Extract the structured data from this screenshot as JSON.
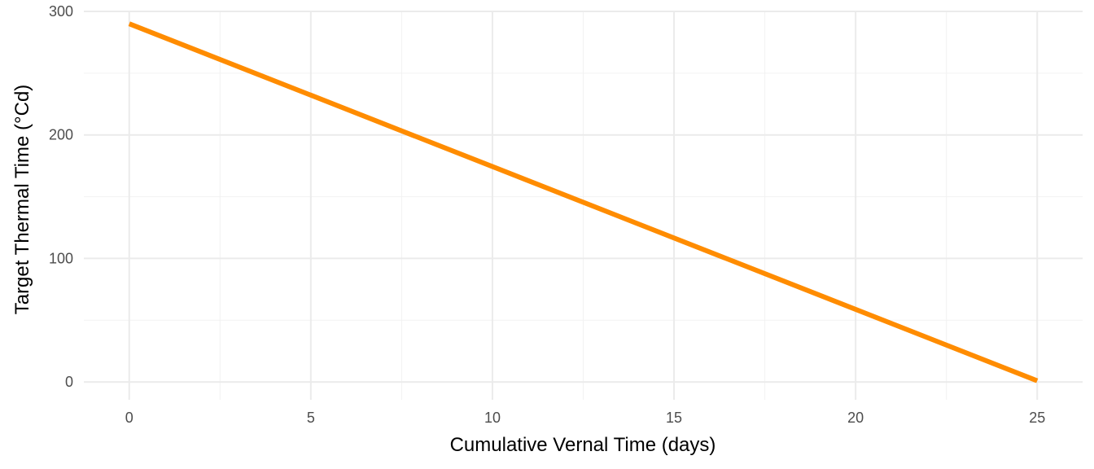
{
  "chart_data": {
    "type": "line",
    "title": "",
    "xlabel": "Cumulative Vernal Time (days)",
    "ylabel": "Target Thermal Time (°Cd)",
    "xlim": [
      -1.25,
      26.25
    ],
    "ylim": [
      -14.4,
      300
    ],
    "x_ticks": [
      0,
      5,
      10,
      15,
      20,
      25
    ],
    "x_tick_labels": [
      "0",
      "5",
      "10",
      "15",
      "20",
      "25"
    ],
    "y_ticks": [
      0,
      100,
      200,
      300
    ],
    "y_tick_labels": [
      "0",
      "100",
      "200",
      "300"
    ],
    "grid": true,
    "legend": "none",
    "series": [
      {
        "color": "#ff8c00",
        "x": [
          0,
          25
        ],
        "y": [
          290,
          1
        ]
      }
    ]
  }
}
